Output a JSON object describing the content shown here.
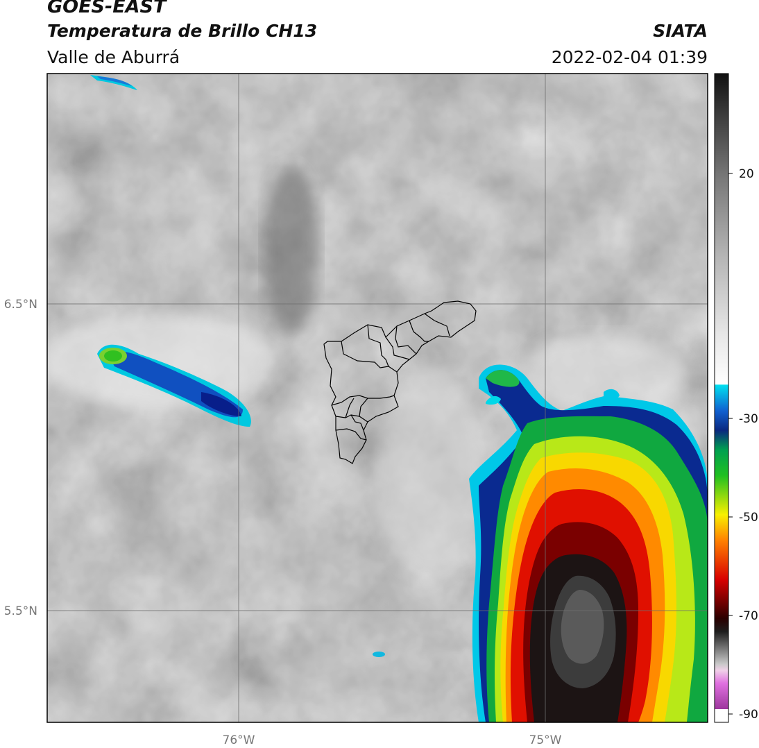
{
  "header": {
    "satellite": "GOES-EAST",
    "product": "Temperatura de Brillo CH13",
    "region": "Valle de Aburrá",
    "source": "SIATA",
    "datetime": "2022-02-04 01:39"
  },
  "axes": {
    "lat_labels": [
      "6.5°N",
      "5.5°N"
    ],
    "lon_labels": [
      "76°W",
      "75°W"
    ]
  },
  "colorbar": {
    "tick_labels": [
      "20",
      "-30",
      "-50",
      "-70",
      "-90"
    ],
    "colors": {
      "gray_dark": "#1a1a1a",
      "cyan": "#00d8e8",
      "blue": "#0a2e9a",
      "green": "#18c818",
      "yellow": "#f4f000",
      "orange": "#ff8c00",
      "red": "#d80000",
      "dark_red": "#3a0000",
      "magenta": "#d060d0",
      "purple": "#8a1a8a"
    }
  }
}
